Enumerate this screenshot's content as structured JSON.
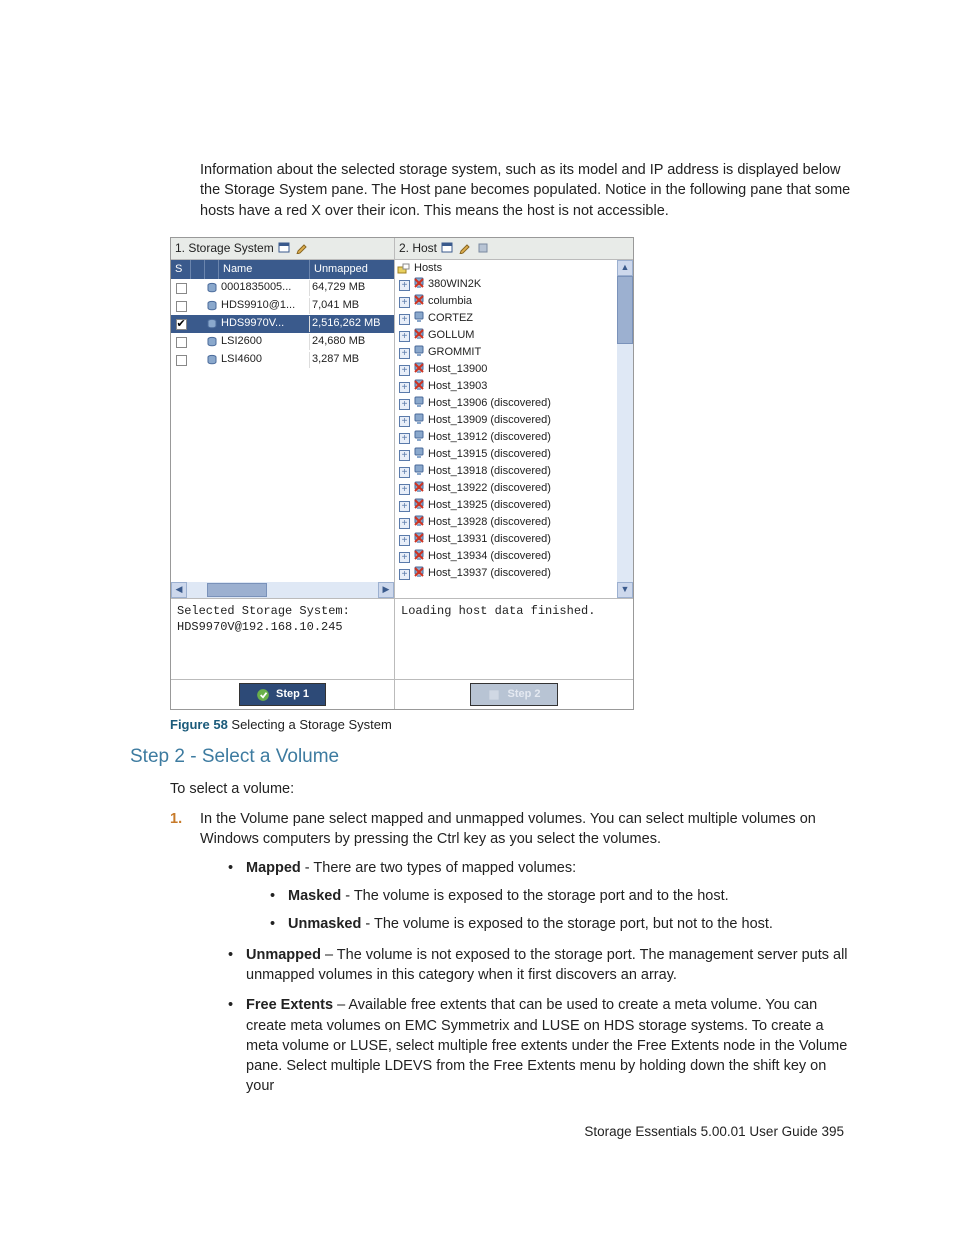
{
  "intro_paragraph": "Information about the selected storage system, such as its model and IP address is displayed below the Storage System pane. The Host pane becomes populated. Notice in the following pane that some hosts have a red X over their icon. This means the host is not accessible.",
  "panes": {
    "storage": {
      "title": "1. Storage System",
      "headers": {
        "s": "S",
        "name": "Name",
        "unmapped": "Unmapped"
      },
      "rows": [
        {
          "checked": false,
          "selected": false,
          "name": "0001835005...",
          "unmapped": "64,729 MB"
        },
        {
          "checked": false,
          "selected": false,
          "name": "HDS9910@1...",
          "unmapped": "7,041 MB"
        },
        {
          "checked": true,
          "selected": true,
          "name": "HDS9970V...",
          "unmapped": "2,516,262 MB"
        },
        {
          "checked": false,
          "selected": false,
          "name": "LSI2600",
          "unmapped": "24,680 MB"
        },
        {
          "checked": false,
          "selected": false,
          "name": "LSI4600",
          "unmapped": "3,287 MB"
        }
      ],
      "status_line1": "Selected Storage System:",
      "status_line2": "HDS9970V@192.168.10.245",
      "step_btn": "Step 1"
    },
    "host": {
      "title": "2. Host",
      "root_label": "Hosts",
      "items": [
        {
          "label": "380WIN2K",
          "accessible": false
        },
        {
          "label": "columbia",
          "accessible": false
        },
        {
          "label": "CORTEZ",
          "accessible": true
        },
        {
          "label": "GOLLUM",
          "accessible": false
        },
        {
          "label": "GROMMIT",
          "accessible": true
        },
        {
          "label": "Host_13900",
          "accessible": false
        },
        {
          "label": "Host_13903",
          "accessible": false
        },
        {
          "label": "Host_13906 (discovered)",
          "accessible": true
        },
        {
          "label": "Host_13909 (discovered)",
          "accessible": true
        },
        {
          "label": "Host_13912 (discovered)",
          "accessible": true
        },
        {
          "label": "Host_13915 (discovered)",
          "accessible": true
        },
        {
          "label": "Host_13918 (discovered)",
          "accessible": true
        },
        {
          "label": "Host_13922 (discovered)",
          "accessible": false
        },
        {
          "label": "Host_13925 (discovered)",
          "accessible": false
        },
        {
          "label": "Host_13928 (discovered)",
          "accessible": false
        },
        {
          "label": "Host_13931 (discovered)",
          "accessible": false
        },
        {
          "label": "Host_13934 (discovered)",
          "accessible": false
        },
        {
          "label": "Host_13937 (discovered)",
          "accessible": false
        }
      ],
      "status": "Loading host data finished.",
      "step_btn": "Step 2"
    }
  },
  "figure_caption": {
    "label": "Figure 58",
    "text": " Selecting a Storage System"
  },
  "section_heading": "Step 2 - Select a Volume",
  "select_volume_intro": "To select a volume:",
  "step_text": "In the Volume pane select mapped and unmapped volumes. You can select multiple volumes on Windows computers by pressing the Ctrl key as you select the volumes.",
  "bullets": {
    "mapped_label": "Mapped",
    "mapped_text": " - There are two types of mapped volumes:",
    "masked_label": "Masked",
    "masked_text": " - The volume is exposed to the storage port and to the host.",
    "unmasked_label": "Unmasked",
    "unmasked_text": " - The volume is exposed to the storage port, but not to the host.",
    "unmapped_label": "Unmapped",
    "unmapped_text": " – The volume is not exposed to the storage port. The management server puts all unmapped volumes in this category when it first discovers an array.",
    "free_label": "Free Extents",
    "free_text": " – Available free extents that can be used to create a meta volume. You can create meta volumes on EMC Symmetrix and LUSE on HDS storage systems. To create a meta volume or LUSE, select multiple free extents under the Free Extents node in the Volume pane. Select multiple LDEVS from the Free Extents menu by holding down the shift key on your"
  },
  "footer": "Storage Essentials 5.00.01 User Guide   395",
  "colors": {
    "header_bg": "#3a5a8c",
    "accent_blue": "#3d7ba0",
    "caption_blue": "#1a5a7a",
    "num_orange": "#c77a2a",
    "host_ok": "#4a7aaa",
    "host_bad_overlay": "#cc3322"
  }
}
